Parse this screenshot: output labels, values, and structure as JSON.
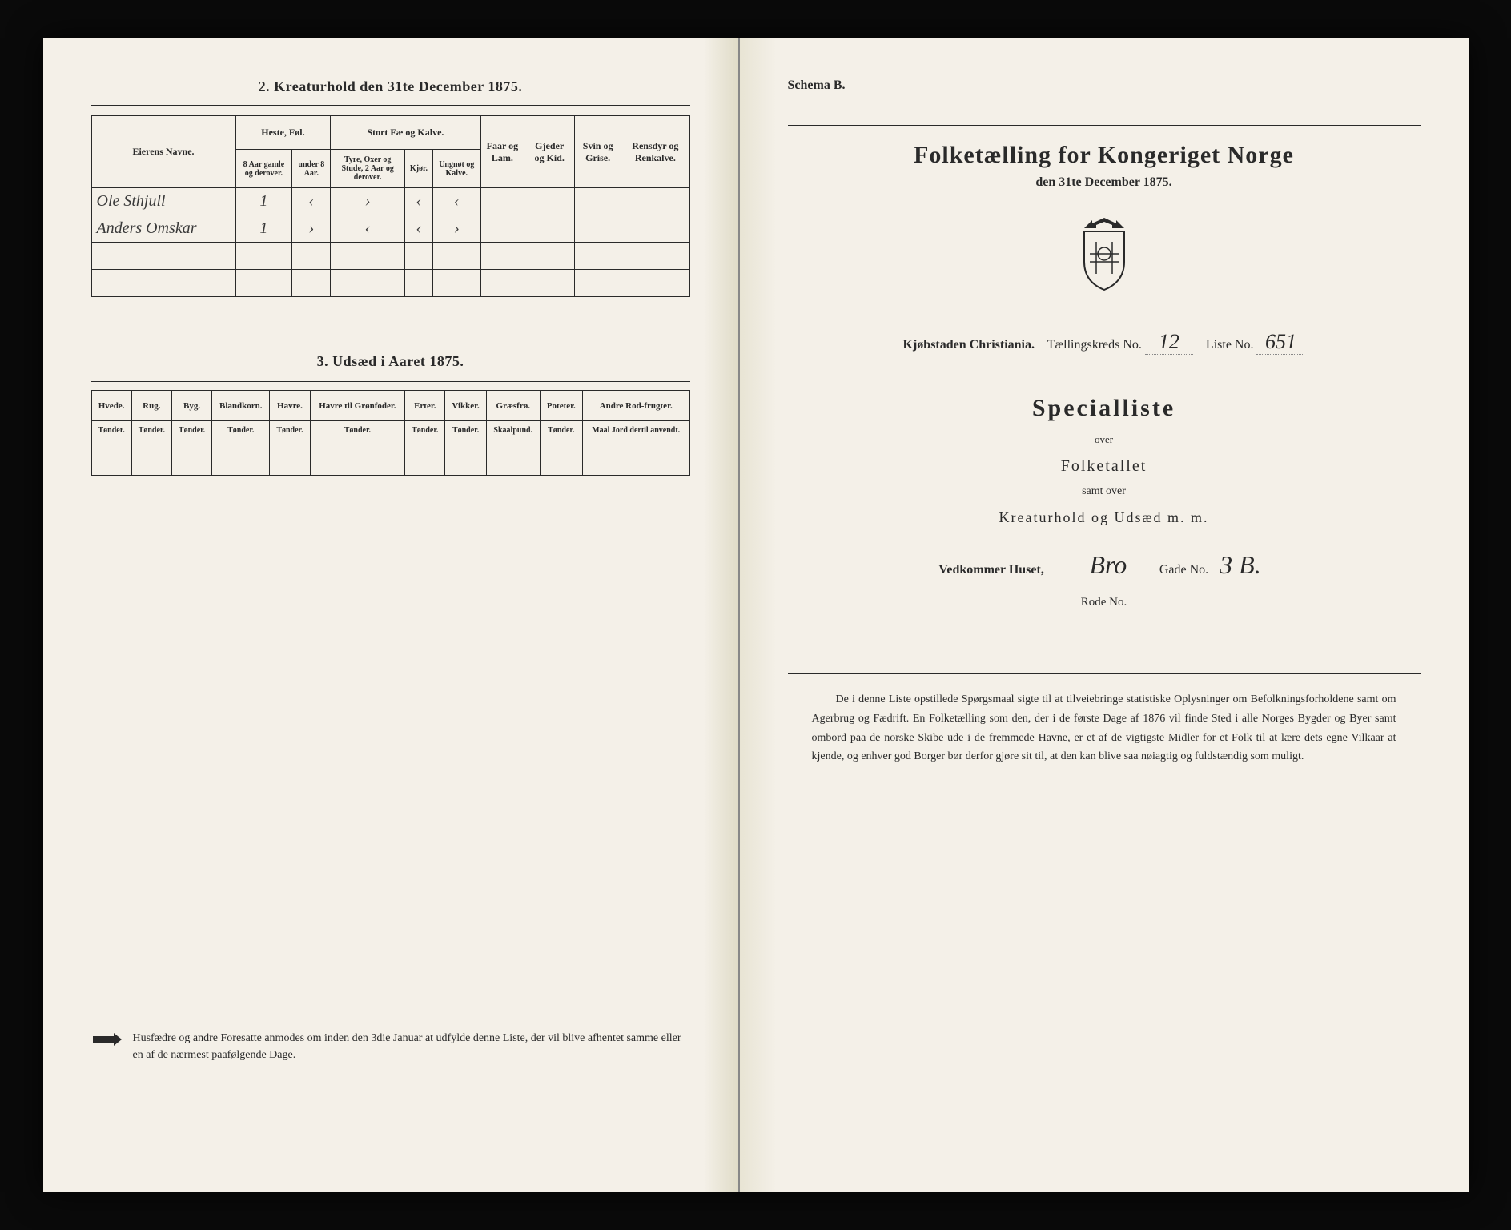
{
  "left": {
    "section2": {
      "title": "2. Kreaturhold den 31te December 1875.",
      "cols": {
        "owner": "Eierens Navne.",
        "heste_group": "Heste, Føl.",
        "heste_a": "8 Aar gamle og derover.",
        "heste_b": "under 8 Aar.",
        "stort_group": "Stort Fæ og Kalve.",
        "stort_a": "Tyre, Oxer og Stude, 2 Aar og derover.",
        "stort_b": "Kjør.",
        "stort_c": "Ungnøt og Kalve.",
        "faar": "Faar og Lam.",
        "gjeder": "Gjeder og Kid.",
        "svin": "Svin og Grise.",
        "rensdyr": "Rensdyr og Renkalve."
      },
      "rows": [
        {
          "owner": "Ole Sthjull",
          "vals": [
            "1",
            "‹",
            "›",
            "‹",
            "‹",
            "",
            "",
            "",
            ""
          ]
        },
        {
          "owner": "Anders Omskar",
          "vals": [
            "1",
            "›",
            "‹",
            "‹",
            "›",
            "",
            "",
            "",
            ""
          ]
        },
        {
          "owner": "",
          "vals": [
            "",
            "",
            "",
            "",
            "",
            "",
            "",
            "",
            ""
          ]
        },
        {
          "owner": "",
          "vals": [
            "",
            "",
            "",
            "",
            "",
            "",
            "",
            "",
            ""
          ]
        }
      ]
    },
    "section3": {
      "title": "3. Udsæd i Aaret 1875.",
      "cols": [
        "Hvede.",
        "Rug.",
        "Byg.",
        "Blandkorn.",
        "Havre.",
        "Havre til Grønfoder.",
        "Erter.",
        "Vikker.",
        "Græsfrø.",
        "Poteter.",
        "Andre Rod-frugter."
      ],
      "units": [
        "Tønder.",
        "Tønder.",
        "Tønder.",
        "Tønder.",
        "Tønder.",
        "Tønder.",
        "Tønder.",
        "Tønder.",
        "Skaalpund.",
        "Tønder.",
        "Maal Jord dertil anvendt."
      ]
    },
    "footer": "Husfædre og andre Foresatte anmodes om inden den 3die Januar at udfylde denne Liste, der vil blive afhentet samme eller en af de nærmest paafølgende Dage."
  },
  "right": {
    "schema": "Schema B.",
    "main_title": "Folketælling for Kongeriget Norge",
    "date": "den 31te December 1875.",
    "city_label": "Kjøbstaden Christiania.",
    "kreds_label": "Tællingskreds No.",
    "kreds_no": "12",
    "liste_label": "Liste No.",
    "liste_no": "651",
    "special": "Specialliste",
    "over": "over",
    "folketallet": "Folketallet",
    "samt_over": "samt over",
    "kreatur": "Kreaturhold og Udsæd m. m.",
    "vedkommer": "Vedkommer Huset,",
    "gade_hand": "Bro",
    "gade_label": "Gade No.",
    "gade_no": "3 B.",
    "rode": "Rode No.",
    "bottom": "De i denne Liste opstillede Spørgsmaal sigte til at tilveiebringe statistiske Oplysninger om Befolkningsforholdene samt om Agerbrug og Fædrift. En Folketælling som den, der i de første Dage af 1876 vil finde Sted i alle Norges Bygder og Byer samt ombord paa de norske Skibe ude i de fremmede Havne, er et af de vigtigste Midler for et Folk til at lære dets egne Vilkaar at kjende, og enhver god Borger bør derfor gjøre sit til, at den kan blive saa nøiagtig og fuldstændig som muligt."
  },
  "colors": {
    "page_bg": "#f4f0e8",
    "ink": "#2a2a2a",
    "outer_bg": "#0a0a0a"
  }
}
